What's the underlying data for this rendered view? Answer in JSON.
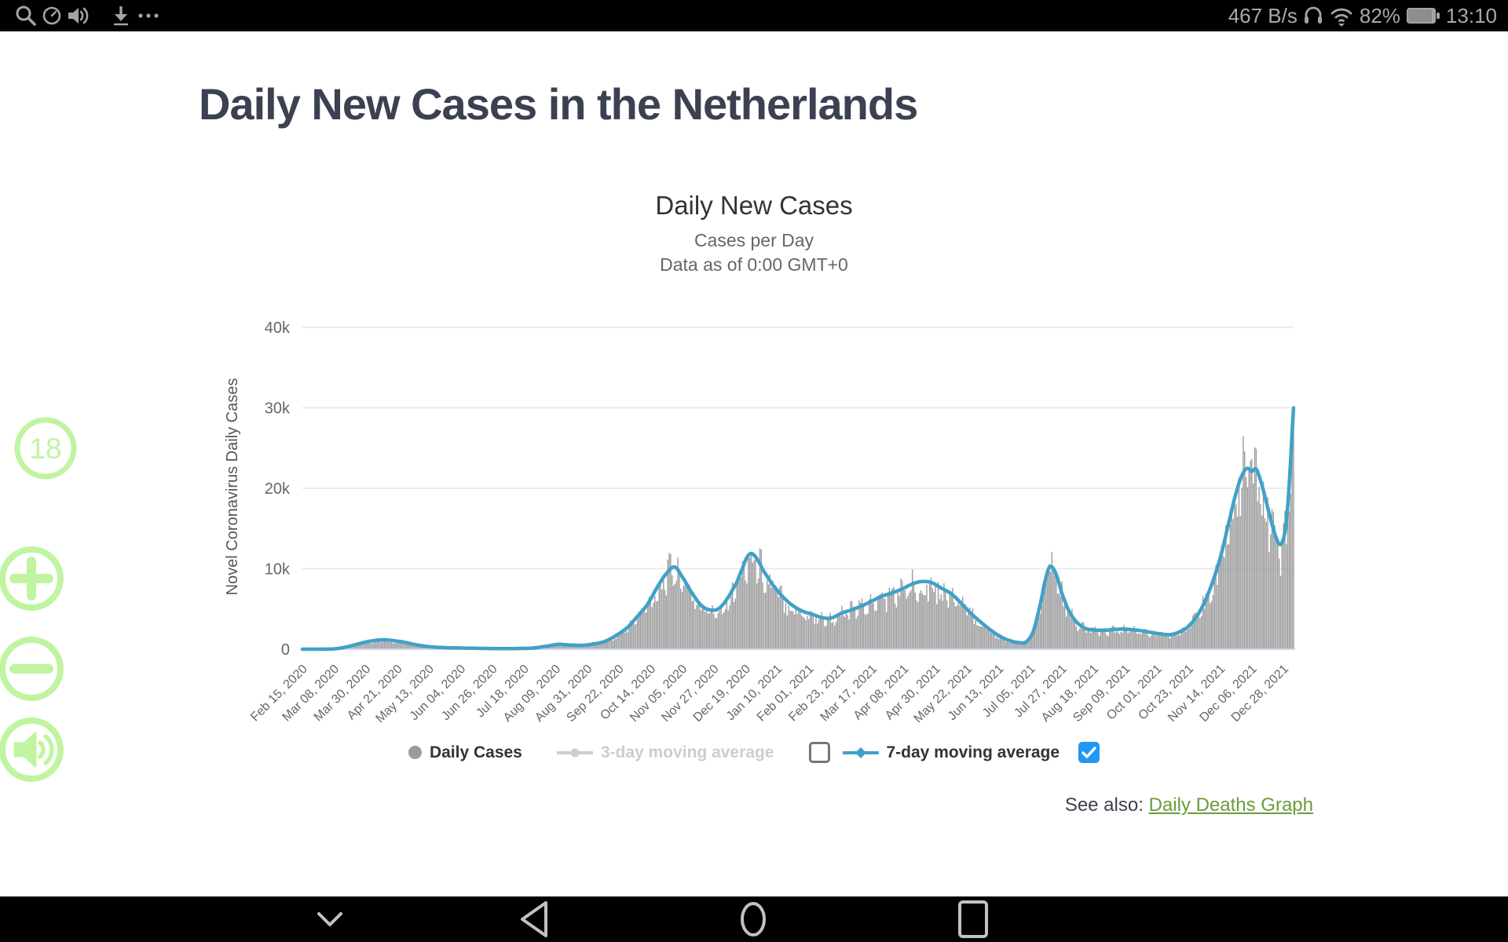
{
  "status_bar": {
    "left_icons": [
      "search-icon",
      "clock-icon",
      "speaker-icon",
      "download-icon",
      "more-icon"
    ],
    "network_speed": "467 B/s",
    "battery_percent": "82%",
    "time": "13:10"
  },
  "page": {
    "title": "Daily New Cases in the Netherlands"
  },
  "chart": {
    "title": "Daily New Cases",
    "subtitle1": "Cases per Day",
    "subtitle2": "Data as of 0:00 GMT+0",
    "y_axis_title": "Novel Coronavirus Daily Cases",
    "legend": [
      {
        "label": "Daily Cases",
        "enabled": true
      },
      {
        "label": "3-day moving average",
        "enabled": false,
        "checkbox": "unchecked"
      },
      {
        "label": "7-day moving average",
        "enabled": true,
        "checkbox": "checked"
      }
    ],
    "see_also_label": "See also:",
    "see_also_link": "Daily Deaths Graph"
  },
  "chart_data": {
    "type": "bar",
    "title": "Daily New Cases",
    "xlabel": "",
    "ylabel": "Novel Coronavirus Daily Cases",
    "ylim": [
      0,
      40000
    ],
    "y_tick_labels": [
      "0",
      "10k",
      "20k",
      "30k",
      "40k"
    ],
    "x_tick_labels": [
      "Feb 15, 2020",
      "Mar 08, 2020",
      "Mar 30, 2020",
      "Apr 21, 2020",
      "May 13, 2020",
      "Jun 04, 2020",
      "Jun 26, 2020",
      "Jul 18, 2020",
      "Aug 09, 2020",
      "Aug 31, 2020",
      "Sep 22, 2020",
      "Oct 14, 2020",
      "Nov 05, 2020",
      "Nov 27, 2020",
      "Dec 19, 2020",
      "Jan 10, 2021",
      "Feb 01, 2021",
      "Feb 23, 2021",
      "Mar 17, 2021",
      "Apr 08, 2021",
      "Apr 30, 2021",
      "May 22, 2021",
      "Jun 13, 2021",
      "Jul 05, 2021",
      "Jul 27, 2021",
      "Aug 18, 2021",
      "Sep 09, 2021",
      "Oct 01, 2021",
      "Oct 23, 2021",
      "Nov 14, 2021",
      "Dec 06, 2021",
      "Dec 28, 2021"
    ],
    "x_tick_day_step": 22,
    "days_total": 689,
    "grid": true,
    "legend_position": "bottom",
    "series": [
      {
        "name": "Daily Cases",
        "type": "bar",
        "color": "#9b9b9b",
        "derived_from": "ma7 smoothed values with daily scatter of roughly ±25%",
        "jitter": {
          "min_factor": 0.8,
          "rand_amp": 0.45,
          "weekly_amp": 0.16
        }
      },
      {
        "name": "7-day moving average",
        "type": "line",
        "color": "#41a1c8",
        "points_day_value": [
          [
            0,
            0
          ],
          [
            14,
            5
          ],
          [
            22,
            40
          ],
          [
            29,
            220
          ],
          [
            36,
            520
          ],
          [
            43,
            850
          ],
          [
            50,
            1080
          ],
          [
            57,
            1170
          ],
          [
            64,
            1050
          ],
          [
            71,
            860
          ],
          [
            78,
            580
          ],
          [
            85,
            380
          ],
          [
            92,
            260
          ],
          [
            100,
            190
          ],
          [
            110,
            150
          ],
          [
            120,
            110
          ],
          [
            130,
            90
          ],
          [
            140,
            75
          ],
          [
            150,
            90
          ],
          [
            160,
            140
          ],
          [
            170,
            380
          ],
          [
            178,
            600
          ],
          [
            186,
            520
          ],
          [
            194,
            480
          ],
          [
            202,
            640
          ],
          [
            210,
            950
          ],
          [
            218,
            1700
          ],
          [
            226,
            2700
          ],
          [
            233,
            4100
          ],
          [
            240,
            5600
          ],
          [
            247,
            7800
          ],
          [
            254,
            9600
          ],
          [
            259,
            10200
          ],
          [
            264,
            9000
          ],
          [
            270,
            7200
          ],
          [
            277,
            5500
          ],
          [
            283,
            4900
          ],
          [
            289,
            5000
          ],
          [
            295,
            6200
          ],
          [
            302,
            8300
          ],
          [
            306,
            10100
          ],
          [
            309,
            11400
          ],
          [
            312,
            11900
          ],
          [
            316,
            11200
          ],
          [
            321,
            9600
          ],
          [
            327,
            8000
          ],
          [
            334,
            6500
          ],
          [
            341,
            5400
          ],
          [
            348,
            4700
          ],
          [
            355,
            4300
          ],
          [
            362,
            3900
          ],
          [
            368,
            3900
          ],
          [
            375,
            4500
          ],
          [
            382,
            4900
          ],
          [
            389,
            5400
          ],
          [
            396,
            6000
          ],
          [
            403,
            6600
          ],
          [
            410,
            7000
          ],
          [
            417,
            7500
          ],
          [
            424,
            8100
          ],
          [
            430,
            8400
          ],
          [
            437,
            8300
          ],
          [
            444,
            7600
          ],
          [
            451,
            6900
          ],
          [
            458,
            5700
          ],
          [
            465,
            4400
          ],
          [
            472,
            3300
          ],
          [
            479,
            2300
          ],
          [
            486,
            1500
          ],
          [
            492,
            1050
          ],
          [
            498,
            820
          ],
          [
            503,
            900
          ],
          [
            508,
            2200
          ],
          [
            513,
            5600
          ],
          [
            517,
            9000
          ],
          [
            520,
            10300
          ],
          [
            524,
            9300
          ],
          [
            528,
            6900
          ],
          [
            533,
            4700
          ],
          [
            538,
            3400
          ],
          [
            544,
            2600
          ],
          [
            550,
            2400
          ],
          [
            557,
            2350
          ],
          [
            564,
            2450
          ],
          [
            571,
            2500
          ],
          [
            578,
            2400
          ],
          [
            585,
            2250
          ],
          [
            591,
            2050
          ],
          [
            597,
            1900
          ],
          [
            603,
            1800
          ],
          [
            609,
            2100
          ],
          [
            615,
            2700
          ],
          [
            621,
            3900
          ],
          [
            627,
            5800
          ],
          [
            633,
            8500
          ],
          [
            639,
            12000
          ],
          [
            645,
            16500
          ],
          [
            650,
            20000
          ],
          [
            654,
            21900
          ],
          [
            657,
            22500
          ],
          [
            660,
            22100
          ],
          [
            663,
            22400
          ],
          [
            666,
            21000
          ],
          [
            669,
            19000
          ],
          [
            673,
            16200
          ],
          [
            677,
            13800
          ],
          [
            680,
            13000
          ],
          [
            683,
            14500
          ],
          [
            685,
            18000
          ],
          [
            687,
            23500
          ],
          [
            689,
            30000
          ]
        ]
      },
      {
        "name": "3-day moving average",
        "type": "line",
        "color": "#cdcdcd",
        "visible": false
      }
    ]
  },
  "side_buttons": {
    "badge_label": "18",
    "color": "#bdf49c",
    "icons": [
      "badge-18",
      "zoom-in-icon",
      "zoom-out-icon",
      "volume-icon"
    ]
  },
  "nav_bar": {
    "icons": [
      "chevron-down-icon",
      "back-icon",
      "home-icon",
      "recents-icon"
    ]
  },
  "colors": {
    "bars": "#9b9b9b",
    "ma7_line": "#41a1c8",
    "checkbox_checked": "#2196f3",
    "link_green": "#6b9c3b",
    "floating_green": "#bdf49c",
    "title_text": "#3b4151"
  }
}
